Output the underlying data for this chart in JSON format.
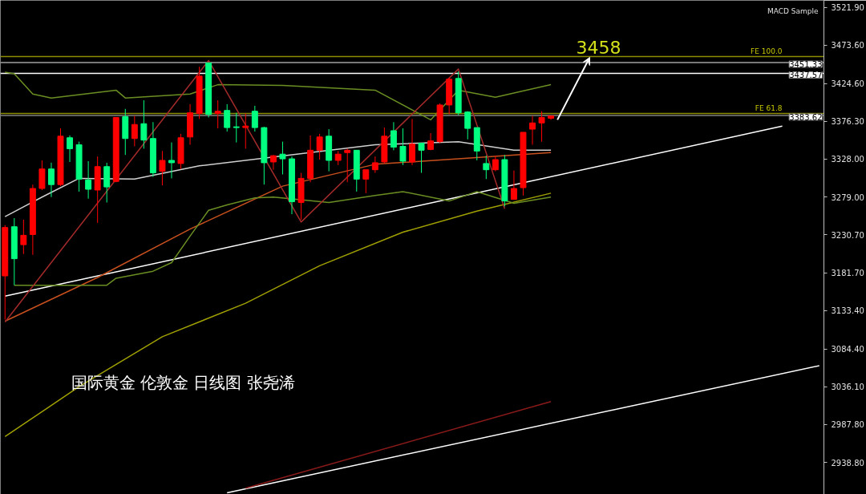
{
  "chart_data": {
    "type": "candlestick",
    "title": "国际黄金 伦敦金 日线图 张尧浠",
    "categories": [
      null,
      null,
      null,
      null,
      null,
      null,
      null,
      null,
      null,
      null,
      null,
      null,
      null,
      null,
      null,
      null,
      null,
      null,
      null,
      null,
      null,
      null,
      null,
      null,
      null,
      null,
      null,
      null,
      null,
      null,
      null,
      null,
      null,
      null,
      null,
      null,
      null,
      null,
      null,
      null,
      null,
      null,
      null,
      null,
      null,
      null,
      null,
      null,
      null,
      null,
      null,
      null,
      null,
      null,
      null,
      null,
      null,
      null,
      null,
      null,
      null,
      null,
      null,
      null,
      null,
      null,
      null,
      null,
      null,
      null,
      null,
      null,
      null,
      null,
      null,
      null,
      null,
      null,
      null,
      null,
      null,
      null,
      null,
      null,
      null,
      null,
      null,
      null,
      null
    ],
    "ohlc": [
      [
        3178,
        3243,
        3122,
        3240
      ],
      [
        3241,
        3252,
        3166,
        3200
      ],
      [
        3218,
        3250,
        3206,
        3230
      ],
      [
        3231,
        3295,
        3205,
        3290
      ],
      [
        3290,
        3326,
        3288,
        3315
      ],
      [
        3315,
        3323,
        3279,
        3295
      ],
      [
        3295,
        3367,
        3293,
        3357
      ],
      [
        3355,
        3358,
        3324,
        3341
      ],
      [
        3346,
        3350,
        3286,
        3302
      ],
      [
        3301,
        3325,
        3277,
        3289
      ],
      [
        3288,
        3331,
        3246,
        3318
      ],
      [
        3318,
        3323,
        3272,
        3292
      ],
      [
        3299,
        3381,
        3298,
        3381
      ],
      [
        3382,
        3392,
        3333,
        3354
      ],
      [
        3354,
        3383,
        3344,
        3372
      ],
      [
        3373,
        3403,
        3341,
        3352
      ],
      [
        3354,
        3375,
        3305,
        3310
      ],
      [
        3312,
        3338,
        3294,
        3326
      ],
      [
        3326,
        3349,
        3303,
        3323
      ],
      [
        3322,
        3360,
        3315,
        3355
      ],
      [
        3356,
        3398,
        3346,
        3387
      ],
      [
        3386,
        3446,
        3379,
        3434
      ],
      [
        3451,
        3451,
        3381,
        3385
      ],
      [
        3386,
        3403,
        3367,
        3389
      ],
      [
        3390,
        3398,
        3363,
        3368
      ],
      [
        3369,
        3387,
        3349,
        3368
      ],
      [
        3368,
        3386,
        3341,
        3370
      ],
      [
        3389,
        3396,
        3363,
        3368
      ],
      [
        3368,
        3369,
        3295,
        3323
      ],
      [
        3324,
        3333,
        3314,
        3332
      ],
      [
        3334,
        3350,
        3308,
        3328
      ],
      [
        3328,
        3331,
        3257,
        3273
      ],
      [
        3272,
        3310,
        3250,
        3303
      ],
      [
        3303,
        3358,
        3298,
        3339
      ],
      [
        3339,
        3360,
        3327,
        3356
      ],
      [
        3357,
        3366,
        3312,
        3326
      ],
      [
        3326,
        3338,
        3320,
        3334
      ],
      [
        3336,
        3341,
        3298,
        3339
      ],
      [
        3339,
        3339,
        3286,
        3302
      ],
      [
        3302,
        3314,
        3284,
        3314
      ],
      [
        3314,
        3331,
        3310,
        3323
      ],
      [
        3324,
        3368,
        3322,
        3357
      ],
      [
        3364,
        3375,
        3339,
        3343
      ],
      [
        3344,
        3367,
        3320,
        3325
      ],
      [
        3324,
        3379,
        3320,
        3347
      ],
      [
        3348,
        3348,
        3310,
        3339
      ],
      [
        3340,
        3361,
        3339,
        3351
      ],
      [
        3350,
        3399,
        3348,
        3397
      ],
      [
        3397,
        3432,
        3385,
        3430
      ],
      [
        3431,
        3440,
        3384,
        3387
      ],
      [
        3388,
        3389,
        3353,
        3367
      ],
      [
        3368,
        3368,
        3326,
        3338
      ],
      [
        3322,
        3332,
        3302,
        3314
      ],
      [
        3314,
        3332,
        3312,
        3327
      ],
      [
        3327,
        3333,
        3267,
        3274
      ],
      [
        3276,
        3313,
        3276,
        3290
      ],
      [
        3291,
        3362,
        3281,
        3362
      ],
      [
        3366,
        3383,
        3346,
        3374
      ],
      [
        3374,
        3389,
        3350,
        3381
      ],
      [
        3380,
        3383,
        3378,
        3383
      ],
      null,
      null,
      null,
      null,
      null,
      null,
      null,
      null,
      null,
      null,
      null,
      null,
      null,
      null,
      null,
      null,
      null,
      null,
      null,
      null,
      null,
      null,
      null,
      null,
      null,
      null,
      null,
      null,
      null
    ],
    "colors": [
      "#ff0000",
      "#00ff80",
      "#ff0000",
      "#ff0000",
      "#ff0000",
      "#00ff80",
      "#ff0000",
      "#00ff80",
      "#00ff80",
      "#00ff80",
      "#ff0000",
      "#00ff80",
      "#ff0000",
      "#00ff80",
      "#ff0000",
      "#00ff80",
      "#00ff80",
      "#ff0000",
      "#00ff80",
      "#ff0000",
      "#ff0000",
      "#ff0000",
      "#00ff80",
      "#ff0000",
      "#00ff80",
      "#00ff80",
      "#ff0000",
      "#00ff80",
      "#00ff80",
      "#ff0000",
      "#00ff80",
      "#00ff80",
      "#ff0000",
      "#ff0000",
      "#ff0000",
      "#00ff80",
      "#ff0000",
      "#ff0000",
      "#00ff80",
      "#ff0000",
      "#ff0000",
      "#ff0000",
      "#00ff80",
      "#00ff80",
      "#ff0000",
      "#00ff80",
      "#ff0000",
      "#ff0000",
      "#ff0000",
      "#00ff80",
      "#00ff80",
      "#00ff80",
      "#00ff80",
      "#ff0000",
      "#00ff80",
      "#ff0000",
      "#ff0000",
      "#ff0000",
      "#ff0000",
      "#ff0000",
      null,
      null,
      null,
      null,
      null,
      null,
      null,
      null,
      null,
      null,
      null,
      null,
      null,
      null,
      null,
      null,
      null,
      null,
      null,
      null,
      null,
      null,
      null,
      null,
      null,
      null,
      null,
      null,
      null
    ],
    "series": [
      {
        "type": "line",
        "color": "#ffffff",
        "values": [
          3152,
          null,
          null,
          null,
          null,
          null,
          null,
          null,
          null,
          null,
          null,
          null,
          null,
          null,
          null,
          null,
          null,
          null,
          null,
          null,
          null,
          null,
          null,
          null,
          null,
          null,
          null,
          null,
          null,
          null,
          null,
          null,
          null,
          null,
          null,
          null,
          null,
          null,
          null,
          null,
          null,
          null,
          null,
          null,
          null,
          null,
          null,
          null,
          null,
          null,
          null,
          null,
          null,
          null,
          null,
          null,
          null,
          null,
          null,
          null,
          null,
          null,
          null,
          null,
          null,
          null,
          null,
          null,
          null,
          null,
          null,
          null,
          null,
          null,
          null,
          null,
          null,
          null,
          null,
          null,
          null,
          null,
          null,
          null,
          3370,
          null,
          null,
          null,
          null
        ]
      },
      {
        "type": "line",
        "color": "#ffffff",
        "values": [
          null,
          null,
          null,
          null,
          null,
          null,
          null,
          null,
          null,
          null,
          null,
          null,
          null,
          null,
          null,
          null,
          null,
          null,
          null,
          null,
          null,
          null,
          null,
          null,
          2900,
          null,
          null,
          null,
          null,
          null,
          null,
          null,
          null,
          null,
          null,
          null,
          null,
          null,
          null,
          null,
          null,
          null,
          null,
          null,
          null,
          null,
          null,
          null,
          null,
          null,
          null,
          null,
          null,
          null,
          null,
          null,
          null,
          null,
          null,
          null,
          null,
          null,
          null,
          null,
          null,
          null,
          null,
          null,
          null,
          null,
          null,
          null,
          null,
          null,
          null,
          null,
          null,
          null,
          null,
          null,
          null,
          null,
          null,
          null,
          null,
          null,
          null,
          null,
          3063
        ]
      },
      {
        "type": "line",
        "color": "#8b1a1a",
        "values": [
          null,
          null,
          null,
          null,
          null,
          null,
          null,
          null,
          null,
          null,
          null,
          null,
          null,
          null,
          null,
          null,
          null,
          null,
          null,
          null,
          null,
          null,
          null,
          null,
          null,
          null,
          2906,
          null,
          null,
          null,
          null,
          null,
          null,
          null,
          null,
          null,
          null,
          null,
          null,
          null,
          null,
          null,
          null,
          null,
          null,
          null,
          null,
          null,
          null,
          null,
          null,
          null,
          null,
          null,
          null,
          null,
          null,
          null,
          null,
          3017,
          null,
          null,
          null,
          null,
          null,
          null,
          null,
          null,
          null,
          null,
          null,
          null,
          null,
          null,
          null,
          null,
          null,
          null,
          null,
          null,
          null,
          null,
          null,
          null,
          null,
          null,
          null,
          null,
          null
        ]
      },
      {
        "type": "line",
        "color": "#a0a000",
        "values": [
          2972,
          null,
          null,
          null,
          null,
          null,
          null,
          null,
          3036,
          null,
          null,
          null,
          null,
          null,
          null,
          null,
          null,
          3100,
          null,
          null,
          null,
          null,
          null,
          null,
          null,
          null,
          3143,
          null,
          null,
          null,
          null,
          null,
          null,
          null,
          3191,
          null,
          null,
          null,
          null,
          null,
          null,
          null,
          null,
          3234,
          null,
          null,
          null,
          null,
          null,
          null,
          null,
          3261,
          null,
          null,
          null,
          null,
          null,
          null,
          null,
          3284,
          null,
          null,
          null,
          null,
          null,
          null,
          null,
          null,
          null,
          null,
          null,
          null,
          null,
          null,
          null,
          null,
          null,
          null,
          null,
          null,
          null,
          null,
          null,
          null,
          null,
          null,
          null,
          null,
          null
        ]
      },
      {
        "type": "line",
        "color": "#c8501e",
        "values": [
          3120,
          null,
          null,
          null,
          null,
          null,
          null,
          null,
          null,
          null,
          3176,
          null,
          null,
          null,
          null,
          null,
          null,
          null,
          null,
          null,
          3238,
          null,
          null,
          null,
          null,
          null,
          null,
          null,
          null,
          null,
          3293,
          null,
          null,
          null,
          null,
          null,
          null,
          null,
          null,
          null,
          3321,
          null,
          null,
          null,
          null,
          null,
          null,
          null,
          null,
          null,
          null,
          null,
          null,
          null,
          null,
          null,
          null,
          null,
          null,
          3336,
          null,
          null,
          null,
          null,
          null,
          null,
          null,
          null,
          null,
          null,
          null,
          null,
          null,
          null,
          null,
          null,
          null,
          null,
          null,
          null,
          null,
          null,
          null,
          null,
          null,
          null,
          null,
          null,
          null
        ]
      },
      {
        "type": "line",
        "color": "#6b8e23",
        "values": [
          3439,
          3437,
          null,
          3411,
          null,
          3406,
          null,
          null,
          null,
          null,
          null,
          null,
          3416,
          3406,
          null,
          null,
          null,
          null,
          null,
          null,
          3411,
          null,
          null,
          3423,
          null,
          null,
          null,
          null,
          null,
          null,
          3422,
          null,
          null,
          null,
          null,
          null,
          null,
          null,
          null,
          null,
          3416,
          null,
          null,
          null,
          null,
          null,
          3378,
          null,
          null,
          3416,
          null,
          null,
          null,
          3407,
          null,
          null,
          null,
          null,
          null,
          3423,
          null,
          null,
          null,
          null,
          null,
          null,
          null,
          null,
          null,
          null,
          null,
          null,
          null,
          null,
          null,
          null,
          null,
          null,
          null,
          null,
          null,
          null,
          null,
          null,
          null,
          null,
          null,
          null,
          null
        ]
      },
      {
        "type": "line",
        "color": "#6b8e23",
        "values": [
          null,
          3166,
          null,
          null,
          null,
          null,
          null,
          null,
          null,
          null,
          null,
          3166,
          3175,
          null,
          null,
          null,
          3184,
          null,
          3195,
          null,
          3229,
          null,
          3262,
          null,
          3269,
          null,
          null,
          3278,
          null,
          3279,
          null,
          null,
          null,
          null,
          null,
          3272,
          null,
          null,
          null,
          null,
          3281,
          null,
          null,
          3286,
          null,
          null,
          null,
          null,
          3274,
          null,
          null,
          3286,
          null,
          null,
          null,
          3271,
          null,
          null,
          null,
          3279,
          null,
          null,
          null,
          null,
          null,
          null,
          null,
          null,
          null,
          null,
          null,
          null,
          null,
          null,
          null,
          null,
          null,
          null,
          null,
          null,
          null,
          null,
          null,
          null,
          null,
          null,
          null,
          null,
          null
        ]
      },
      {
        "type": "line",
        "color": "#d0d0d0",
        "values": [
          3254,
          null,
          null,
          null,
          3279,
          null,
          null,
          null,
          3303,
          null,
          null,
          null,
          null,
          null,
          3302,
          null,
          null,
          null,
          null,
          null,
          null,
          3319,
          null,
          null,
          null,
          null,
          null,
          null,
          null,
          null,
          null,
          null,
          null,
          null,
          null,
          null,
          null,
          null,
          null,
          null,
          3346,
          null,
          null,
          null,
          null,
          null,
          null,
          null,
          null,
          3350,
          null,
          null,
          null,
          null,
          null,
          3339,
          null,
          null,
          null,
          3339,
          null,
          null,
          null,
          null,
          null,
          null,
          null,
          null,
          null,
          null,
          null,
          null,
          null,
          null,
          null,
          null,
          null,
          null,
          null,
          null,
          null,
          null,
          null,
          null,
          null,
          null,
          null,
          null,
          null
        ]
      },
      {
        "type": "line",
        "color": "#a52a2a",
        "values": [
          3119,
          null,
          null,
          null,
          null,
          null,
          null,
          null,
          null,
          null,
          null,
          null,
          null,
          null,
          null,
          null,
          null,
          null,
          null,
          null,
          null,
          null,
          3454,
          null,
          null,
          null,
          null,
          null,
          null,
          null,
          null,
          null,
          3247,
          null,
          null,
          null,
          null,
          null,
          null,
          null,
          null,
          null,
          null,
          null,
          null,
          null,
          null,
          null,
          null,
          3443,
          null,
          null,
          null,
          null,
          3264,
          null,
          null,
          null,
          null,
          null,
          null,
          null,
          null,
          null,
          null,
          null,
          null,
          null,
          null,
          null,
          null,
          null,
          null,
          null,
          null,
          null,
          null,
          null,
          null,
          null,
          null,
          null,
          null,
          null,
          null,
          null,
          null,
          null,
          null
        ]
      }
    ],
    "ylim": [
      2898,
      3531
    ],
    "yticks": [
      {
        "value": 3521.9,
        "label": "3521.90"
      },
      {
        "value": 3473.6,
        "label": "3473.60"
      },
      {
        "value": 3424.6,
        "label": "3424.60"
      },
      {
        "value": 3376.3,
        "label": "3376.30"
      },
      {
        "value": 3328.0,
        "label": "3328.00"
      },
      {
        "value": 3279.0,
        "label": "3279.00"
      },
      {
        "value": 3230.7,
        "label": "3230.70"
      },
      {
        "value": 3181.7,
        "label": "3181.70"
      },
      {
        "value": 3133.4,
        "label": "3133.40"
      },
      {
        "value": 3084.4,
        "label": "3084.40"
      },
      {
        "value": 3036.1,
        "label": "3036.10"
      },
      {
        "value": 2987.8,
        "label": "2987.80"
      },
      {
        "value": 2938.8,
        "label": "2938.80"
      }
    ],
    "ref_lines": [
      {
        "axis": "y",
        "value": 3451.33,
        "label": "3451.33",
        "color": "#a0a0a0"
      },
      {
        "axis": "y",
        "value": 3437.57,
        "label": "3437.57",
        "color": "#ffffff"
      },
      {
        "axis": "y",
        "value": 3383.62,
        "label": "3383.62",
        "color": "#808080"
      },
      {
        "axis": "y",
        "value": 3459,
        "label": "FE 100.0",
        "color": "#8c8c00"
      },
      {
        "axis": "y",
        "value": 3386,
        "label": "FE 61.8",
        "color": "#8c8c00"
      }
    ],
    "annotations": [
      "MACD Sample",
      "3458"
    ],
    "tick_labels": "y"
  }
}
